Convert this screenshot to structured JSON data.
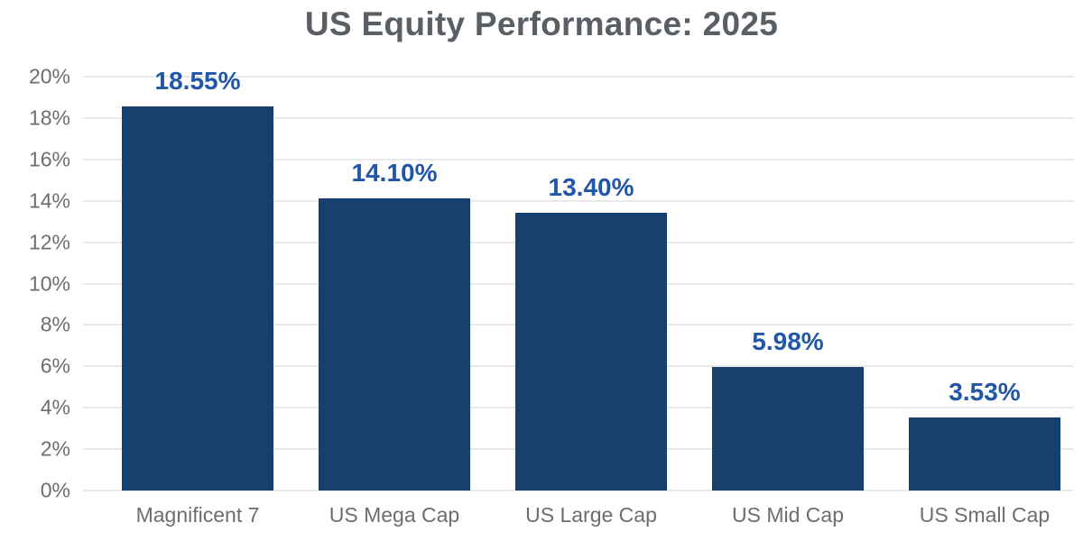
{
  "chart_data": {
    "type": "bar",
    "title": "US Equity Performance: 2025",
    "categories": [
      "Magnificent 7",
      "US Mega Cap",
      "US Large Cap",
      "US Mid Cap",
      "US Small Cap"
    ],
    "values": [
      18.55,
      14.1,
      13.4,
      5.98,
      3.53
    ],
    "value_labels": [
      "18.55%",
      "14.10%",
      "13.40%",
      "5.98%",
      "3.53%"
    ],
    "xlabel": "",
    "ylabel": "",
    "ylim": [
      0,
      20
    ],
    "ytick_step": 2,
    "ytick_labels": [
      "0%",
      "2%",
      "4%",
      "6%",
      "8%",
      "10%",
      "12%",
      "14%",
      "16%",
      "18%",
      "20%"
    ],
    "grid": "horizontal",
    "legend_position": "none",
    "colors": {
      "bar": "#17406E",
      "value_label": "#2057A7",
      "title": "#595F64",
      "axis_label": "#6B6E71",
      "gridline": "#E9E9E9",
      "background": "#FFFFFF"
    }
  }
}
